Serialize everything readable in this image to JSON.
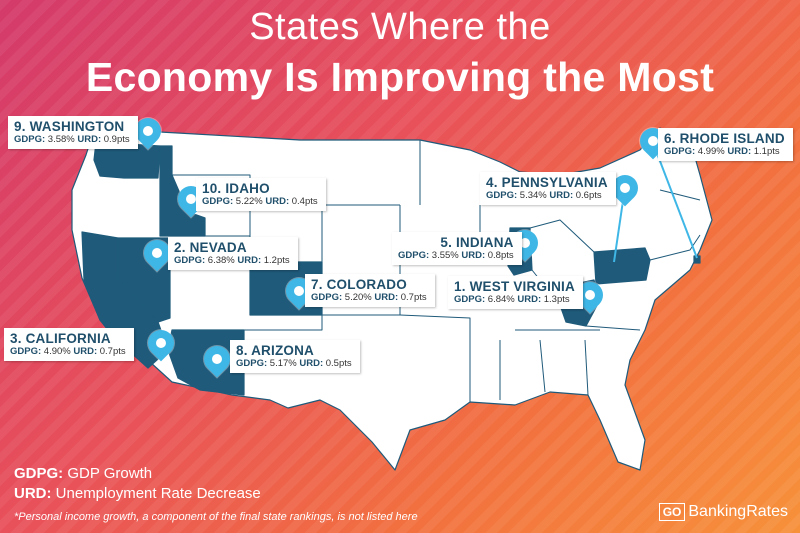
{
  "title": {
    "line1": "States Where the",
    "line2": "Economy Is Improving the Most"
  },
  "colors": {
    "highlight_state": "#1f5a7a",
    "base_state": "#ffffff",
    "pin": "#3fb7e6",
    "label_text": "#1f4f6b"
  },
  "states": [
    {
      "rank_name": "9. WASHINGTON",
      "gdpg_label": "GDPG:",
      "gdpg": "3.58%",
      "urd_label": "URD:",
      "urd": "0.9pts"
    },
    {
      "rank_name": "10. IDAHO",
      "gdpg_label": "GDPG:",
      "gdpg": "5.22%",
      "urd_label": "URD:",
      "urd": "0.4pts"
    },
    {
      "rank_name": "2. NEVADA",
      "gdpg_label": "GDPG:",
      "gdpg": "6.38%",
      "urd_label": "URD:",
      "urd": "1.2pts"
    },
    {
      "rank_name": "7. COLORADO",
      "gdpg_label": "GDPG:",
      "gdpg": "5.20%",
      "urd_label": "URD:",
      "urd": "0.7pts"
    },
    {
      "rank_name": "3. CALIFORNIA",
      "gdpg_label": "GDPG:",
      "gdpg": "4.90%",
      "urd_label": "URD:",
      "urd": "0.7pts"
    },
    {
      "rank_name": "8. ARIZONA",
      "gdpg_label": "GDPG:",
      "gdpg": "5.17%",
      "urd_label": "URD:",
      "urd": "0.5pts"
    },
    {
      "rank_name": "5. INDIANA",
      "gdpg_label": "GDPG:",
      "gdpg": "3.55%",
      "urd_label": "URD:",
      "urd": "0.8pts"
    },
    {
      "rank_name": "1. WEST VIRGINIA",
      "gdpg_label": "GDPG:",
      "gdpg": "6.84%",
      "urd_label": "URD:",
      "urd": "1.3pts"
    },
    {
      "rank_name": "4. PENNSYLVANIA",
      "gdpg_label": "GDPG:",
      "gdpg": "5.34%",
      "urd_label": "URD:",
      "urd": "0.6pts"
    },
    {
      "rank_name": "6. RHODE ISLAND",
      "gdpg_label": "GDPG:",
      "gdpg": "4.99%",
      "urd_label": "URD:",
      "urd": "1.1pts"
    }
  ],
  "legend": {
    "gdpg_key": "GDPG:",
    "gdpg_desc": "GDP Growth",
    "urd_key": "URD:",
    "urd_desc": "Unemployment Rate Decrease"
  },
  "footnote": "*Personal income growth, a component of the final state rankings, is not listed here",
  "brand": {
    "box": "GO",
    "text": "BankingRates"
  }
}
